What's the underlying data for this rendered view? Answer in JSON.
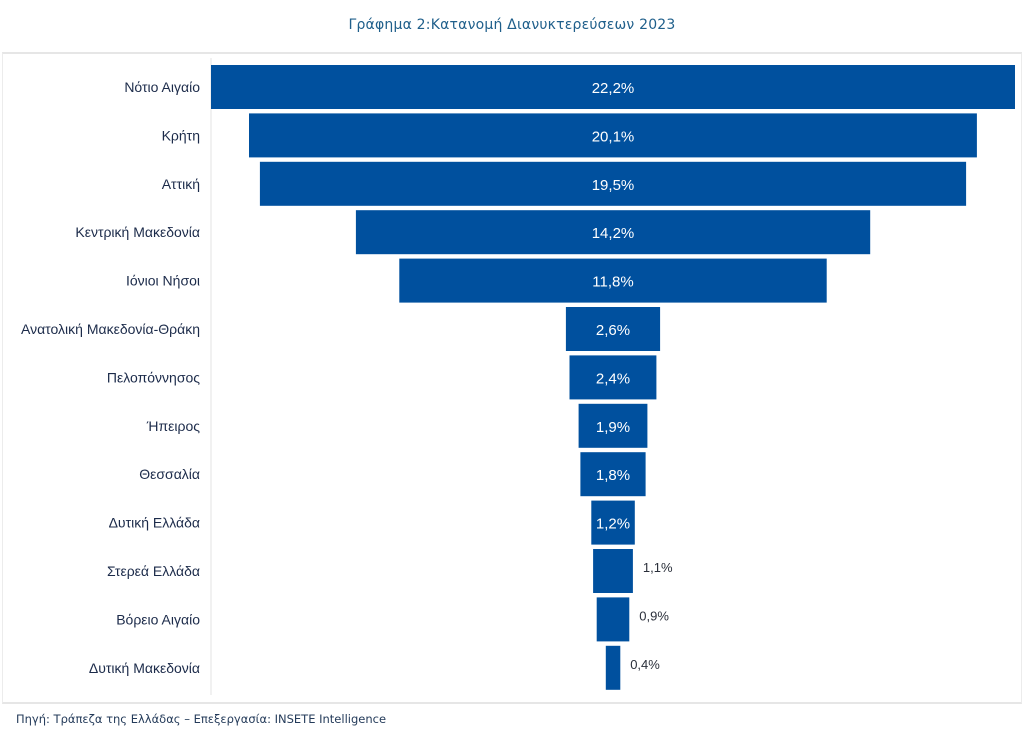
{
  "chart_data": {
    "type": "bar",
    "subtype": "funnel",
    "orientation": "horizontal",
    "title": "Γράφημα 2:Κατανομή Διανυκτερεύσεων 2023",
    "xlabel": "",
    "ylabel": "",
    "grid": false,
    "legend": "none",
    "bar_color": "#00509e",
    "categories": [
      "Νότιο Αιγαίο",
      "Κρήτη",
      "Αττική",
      "Κεντρική Μακεδονία",
      "Ιόνιοι Νήσοι",
      "Ανατολική Μακεδονία-Θράκη",
      "Πελοπόννησος",
      "Ήπειρος",
      "Θεσσαλία",
      "Δυτική Ελλάδα",
      "Στερεά Ελλάδα",
      "Βόρειο Αιγαίο",
      "Δυτική Μακεδονία"
    ],
    "values": [
      22.2,
      20.1,
      19.5,
      14.2,
      11.8,
      2.6,
      2.4,
      1.9,
      1.8,
      1.2,
      1.1,
      0.9,
      0.4
    ],
    "value_labels": [
      "22,2%",
      "20,1%",
      "19,5%",
      "14,2%",
      "11,8%",
      "2,6%",
      "2,4%",
      "1,9%",
      "1,8%",
      "1,2%",
      "1,1%",
      "0,9%",
      "0,4%"
    ],
    "unit": "%"
  },
  "footer": {
    "source": "Πηγή: Τράπεζα της Ελλάδας – Επεξεργασία: INSETE Intelligence"
  }
}
